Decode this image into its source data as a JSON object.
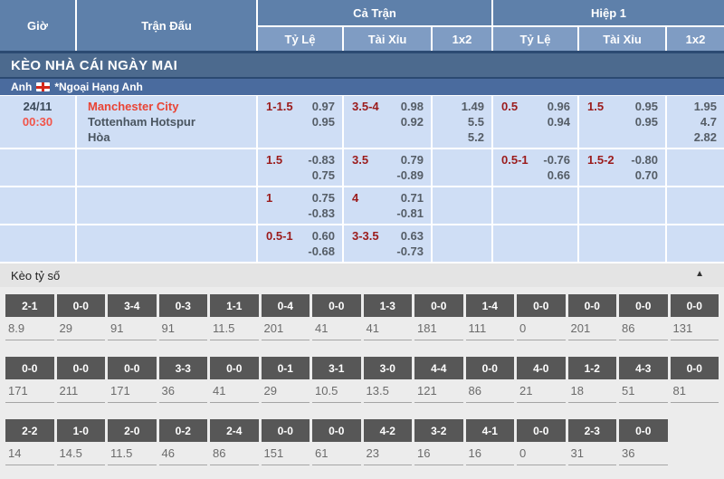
{
  "header": {
    "col_time": "Giờ",
    "col_match": "Trận Đấu",
    "group_full": "Cả Trận",
    "group_half": "Hiệp 1",
    "sub_handicap": "Tỷ Lệ",
    "sub_overunder": "Tài Xỉu",
    "sub_1x2": "1x2"
  },
  "section_title": "KÈO NHÀ CÁI NGÀY MAI",
  "league": {
    "country": "Anh",
    "flag_icon": "england-flag",
    "name": "*Ngoại Hạng Anh"
  },
  "match": {
    "date": "24/11",
    "time": "00:30",
    "home": "Manchester City",
    "away": "Tottenham Hotspur",
    "draw_label": "Hòa"
  },
  "colors": {
    "header_blue": "#5e80aa",
    "subheader_blue": "#7f9cc3",
    "banner_blue": "#4c6a8e",
    "league_blue": "#4a6b9e",
    "row_bg": "#cfdef5",
    "handicap_red": "#9b1b1b",
    "team_red": "#e94435",
    "chip_gray": "#575757"
  },
  "odds_rows": [
    {
      "ft_hdp": {
        "line": "1-1.5",
        "vals": [
          "0.97",
          "0.95"
        ]
      },
      "ft_ou": {
        "line": "3.5-4",
        "vals": [
          "0.98",
          "0.92"
        ]
      },
      "ft_1x2": {
        "vals": [
          "1.49",
          "5.5",
          "5.2"
        ]
      },
      "h1_hdp": {
        "line": "0.5",
        "vals": [
          "0.96",
          "0.94"
        ]
      },
      "h1_ou": {
        "line": "1.5",
        "vals": [
          "0.95",
          "0.95"
        ]
      },
      "h1_1x2": {
        "vals": [
          "1.95",
          "4.7",
          "2.82"
        ]
      }
    },
    {
      "ft_hdp": {
        "line": "1.5",
        "vals": [
          "-0.83",
          "0.75"
        ]
      },
      "ft_ou": {
        "line": "3.5",
        "vals": [
          "0.79",
          "-0.89"
        ]
      },
      "ft_1x2": {
        "vals": []
      },
      "h1_hdp": {
        "line": "0.5-1",
        "vals": [
          "-0.76",
          "0.66"
        ]
      },
      "h1_ou": {
        "line": "1.5-2",
        "vals": [
          "-0.80",
          "0.70"
        ]
      },
      "h1_1x2": {
        "vals": []
      }
    },
    {
      "ft_hdp": {
        "line": "1",
        "vals": [
          "0.75",
          "-0.83"
        ]
      },
      "ft_ou": {
        "line": "4",
        "vals": [
          "0.71",
          "-0.81"
        ]
      },
      "ft_1x2": {
        "vals": []
      },
      "h1_hdp": {
        "vals": []
      },
      "h1_ou": {
        "vals": []
      },
      "h1_1x2": {
        "vals": []
      }
    },
    {
      "ft_hdp": {
        "line": "0.5-1",
        "vals": [
          "0.60",
          "-0.68"
        ]
      },
      "ft_ou": {
        "line": "3-3.5",
        "vals": [
          "0.63",
          "-0.73"
        ]
      },
      "ft_1x2": {
        "vals": []
      },
      "h1_hdp": {
        "vals": []
      },
      "h1_ou": {
        "vals": []
      },
      "h1_1x2": {
        "vals": []
      }
    }
  ],
  "score_section": {
    "title": "Kèo tỷ số",
    "collapse_icon": "chevron-up",
    "columns": 14,
    "rows": [
      [
        {
          "score": "2-1",
          "odds": "8.9"
        },
        {
          "score": "0-0",
          "odds": "29"
        },
        {
          "score": "3-4",
          "odds": "91"
        },
        {
          "score": "0-3",
          "odds": "91"
        },
        {
          "score": "1-1",
          "odds": "11.5"
        },
        {
          "score": "0-4",
          "odds": "201"
        },
        {
          "score": "0-0",
          "odds": "41"
        },
        {
          "score": "1-3",
          "odds": "41"
        },
        {
          "score": "0-0",
          "odds": "181"
        },
        {
          "score": "1-4",
          "odds": "111"
        },
        {
          "score": "0-0",
          "odds": "0"
        },
        {
          "score": "0-0",
          "odds": "201"
        },
        {
          "score": "0-0",
          "odds": "86"
        },
        {
          "score": "0-0",
          "odds": "131"
        }
      ],
      [
        {
          "score": "0-0",
          "odds": "171"
        },
        {
          "score": "0-0",
          "odds": "211"
        },
        {
          "score": "0-0",
          "odds": "171"
        },
        {
          "score": "3-3",
          "odds": "36"
        },
        {
          "score": "0-0",
          "odds": "41"
        },
        {
          "score": "0-1",
          "odds": "29"
        },
        {
          "score": "3-1",
          "odds": "10.5"
        },
        {
          "score": "3-0",
          "odds": "13.5"
        },
        {
          "score": "4-4",
          "odds": "121"
        },
        {
          "score": "0-0",
          "odds": "86"
        },
        {
          "score": "4-0",
          "odds": "21"
        },
        {
          "score": "1-2",
          "odds": "18"
        },
        {
          "score": "4-3",
          "odds": "51"
        },
        {
          "score": "0-0",
          "odds": "81"
        }
      ],
      [
        {
          "score": "2-2",
          "odds": "14"
        },
        {
          "score": "1-0",
          "odds": "14.5"
        },
        {
          "score": "2-0",
          "odds": "11.5"
        },
        {
          "score": "0-2",
          "odds": "46"
        },
        {
          "score": "2-4",
          "odds": "86"
        },
        {
          "score": "0-0",
          "odds": "151"
        },
        {
          "score": "0-0",
          "odds": "61"
        },
        {
          "score": "4-2",
          "odds": "23"
        },
        {
          "score": "3-2",
          "odds": "16"
        },
        {
          "score": "4-1",
          "odds": "16"
        },
        {
          "score": "0-0",
          "odds": "0"
        },
        {
          "score": "2-3",
          "odds": "31"
        },
        {
          "score": "0-0",
          "odds": "36"
        }
      ]
    ]
  }
}
